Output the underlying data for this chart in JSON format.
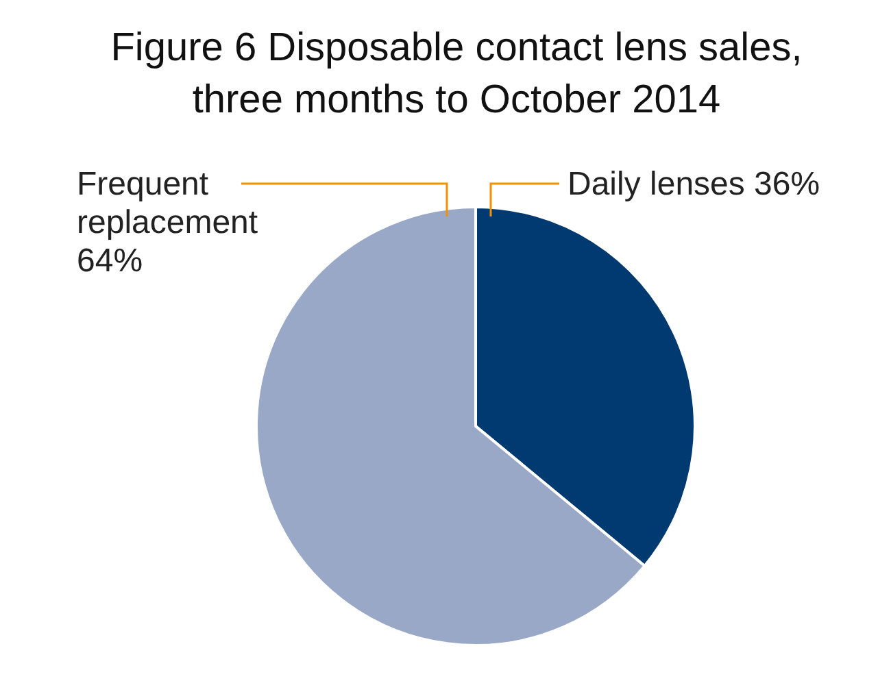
{
  "chart_data": {
    "type": "pie",
    "title": "Figure 6 Disposable contact lens sales,\nthree months to October 2014",
    "categories": [
      "Daily lenses",
      "Frequent replacement"
    ],
    "values": [
      36,
      64
    ],
    "colors": [
      "#003a70",
      "#9aa8c8"
    ],
    "value_labels": [
      "36%",
      "64%"
    ],
    "legend": false
  }
}
